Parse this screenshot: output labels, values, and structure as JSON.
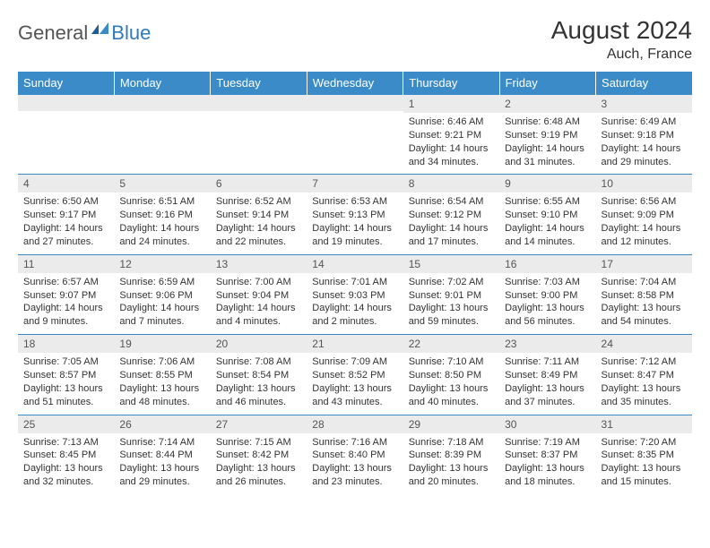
{
  "logo": {
    "text1": "General",
    "text2": "Blue"
  },
  "title": "August 2024",
  "location": "Auch, France",
  "colors": {
    "header_bg": "#3b8bc8",
    "header_text": "#ffffff",
    "daynum_bg": "#ebebeb",
    "grid_line": "#3b8bc8",
    "body_text": "#333333",
    "logo_gray": "#555555",
    "logo_blue": "#2f7ac0"
  },
  "weekdays": [
    "Sunday",
    "Monday",
    "Tuesday",
    "Wednesday",
    "Thursday",
    "Friday",
    "Saturday"
  ],
  "weeks": [
    [
      {
        "n": "",
        "sr": "",
        "ss": "",
        "dl": ""
      },
      {
        "n": "",
        "sr": "",
        "ss": "",
        "dl": ""
      },
      {
        "n": "",
        "sr": "",
        "ss": "",
        "dl": ""
      },
      {
        "n": "",
        "sr": "",
        "ss": "",
        "dl": ""
      },
      {
        "n": "1",
        "sr": "Sunrise: 6:46 AM",
        "ss": "Sunset: 9:21 PM",
        "dl": "Daylight: 14 hours and 34 minutes."
      },
      {
        "n": "2",
        "sr": "Sunrise: 6:48 AM",
        "ss": "Sunset: 9:19 PM",
        "dl": "Daylight: 14 hours and 31 minutes."
      },
      {
        "n": "3",
        "sr": "Sunrise: 6:49 AM",
        "ss": "Sunset: 9:18 PM",
        "dl": "Daylight: 14 hours and 29 minutes."
      }
    ],
    [
      {
        "n": "4",
        "sr": "Sunrise: 6:50 AM",
        "ss": "Sunset: 9:17 PM",
        "dl": "Daylight: 14 hours and 27 minutes."
      },
      {
        "n": "5",
        "sr": "Sunrise: 6:51 AM",
        "ss": "Sunset: 9:16 PM",
        "dl": "Daylight: 14 hours and 24 minutes."
      },
      {
        "n": "6",
        "sr": "Sunrise: 6:52 AM",
        "ss": "Sunset: 9:14 PM",
        "dl": "Daylight: 14 hours and 22 minutes."
      },
      {
        "n": "7",
        "sr": "Sunrise: 6:53 AM",
        "ss": "Sunset: 9:13 PM",
        "dl": "Daylight: 14 hours and 19 minutes."
      },
      {
        "n": "8",
        "sr": "Sunrise: 6:54 AM",
        "ss": "Sunset: 9:12 PM",
        "dl": "Daylight: 14 hours and 17 minutes."
      },
      {
        "n": "9",
        "sr": "Sunrise: 6:55 AM",
        "ss": "Sunset: 9:10 PM",
        "dl": "Daylight: 14 hours and 14 minutes."
      },
      {
        "n": "10",
        "sr": "Sunrise: 6:56 AM",
        "ss": "Sunset: 9:09 PM",
        "dl": "Daylight: 14 hours and 12 minutes."
      }
    ],
    [
      {
        "n": "11",
        "sr": "Sunrise: 6:57 AM",
        "ss": "Sunset: 9:07 PM",
        "dl": "Daylight: 14 hours and 9 minutes."
      },
      {
        "n": "12",
        "sr": "Sunrise: 6:59 AM",
        "ss": "Sunset: 9:06 PM",
        "dl": "Daylight: 14 hours and 7 minutes."
      },
      {
        "n": "13",
        "sr": "Sunrise: 7:00 AM",
        "ss": "Sunset: 9:04 PM",
        "dl": "Daylight: 14 hours and 4 minutes."
      },
      {
        "n": "14",
        "sr": "Sunrise: 7:01 AM",
        "ss": "Sunset: 9:03 PM",
        "dl": "Daylight: 14 hours and 2 minutes."
      },
      {
        "n": "15",
        "sr": "Sunrise: 7:02 AM",
        "ss": "Sunset: 9:01 PM",
        "dl": "Daylight: 13 hours and 59 minutes."
      },
      {
        "n": "16",
        "sr": "Sunrise: 7:03 AM",
        "ss": "Sunset: 9:00 PM",
        "dl": "Daylight: 13 hours and 56 minutes."
      },
      {
        "n": "17",
        "sr": "Sunrise: 7:04 AM",
        "ss": "Sunset: 8:58 PM",
        "dl": "Daylight: 13 hours and 54 minutes."
      }
    ],
    [
      {
        "n": "18",
        "sr": "Sunrise: 7:05 AM",
        "ss": "Sunset: 8:57 PM",
        "dl": "Daylight: 13 hours and 51 minutes."
      },
      {
        "n": "19",
        "sr": "Sunrise: 7:06 AM",
        "ss": "Sunset: 8:55 PM",
        "dl": "Daylight: 13 hours and 48 minutes."
      },
      {
        "n": "20",
        "sr": "Sunrise: 7:08 AM",
        "ss": "Sunset: 8:54 PM",
        "dl": "Daylight: 13 hours and 46 minutes."
      },
      {
        "n": "21",
        "sr": "Sunrise: 7:09 AM",
        "ss": "Sunset: 8:52 PM",
        "dl": "Daylight: 13 hours and 43 minutes."
      },
      {
        "n": "22",
        "sr": "Sunrise: 7:10 AM",
        "ss": "Sunset: 8:50 PM",
        "dl": "Daylight: 13 hours and 40 minutes."
      },
      {
        "n": "23",
        "sr": "Sunrise: 7:11 AM",
        "ss": "Sunset: 8:49 PM",
        "dl": "Daylight: 13 hours and 37 minutes."
      },
      {
        "n": "24",
        "sr": "Sunrise: 7:12 AM",
        "ss": "Sunset: 8:47 PM",
        "dl": "Daylight: 13 hours and 35 minutes."
      }
    ],
    [
      {
        "n": "25",
        "sr": "Sunrise: 7:13 AM",
        "ss": "Sunset: 8:45 PM",
        "dl": "Daylight: 13 hours and 32 minutes."
      },
      {
        "n": "26",
        "sr": "Sunrise: 7:14 AM",
        "ss": "Sunset: 8:44 PM",
        "dl": "Daylight: 13 hours and 29 minutes."
      },
      {
        "n": "27",
        "sr": "Sunrise: 7:15 AM",
        "ss": "Sunset: 8:42 PM",
        "dl": "Daylight: 13 hours and 26 minutes."
      },
      {
        "n": "28",
        "sr": "Sunrise: 7:16 AM",
        "ss": "Sunset: 8:40 PM",
        "dl": "Daylight: 13 hours and 23 minutes."
      },
      {
        "n": "29",
        "sr": "Sunrise: 7:18 AM",
        "ss": "Sunset: 8:39 PM",
        "dl": "Daylight: 13 hours and 20 minutes."
      },
      {
        "n": "30",
        "sr": "Sunrise: 7:19 AM",
        "ss": "Sunset: 8:37 PM",
        "dl": "Daylight: 13 hours and 18 minutes."
      },
      {
        "n": "31",
        "sr": "Sunrise: 7:20 AM",
        "ss": "Sunset: 8:35 PM",
        "dl": "Daylight: 13 hours and 15 minutes."
      }
    ]
  ]
}
